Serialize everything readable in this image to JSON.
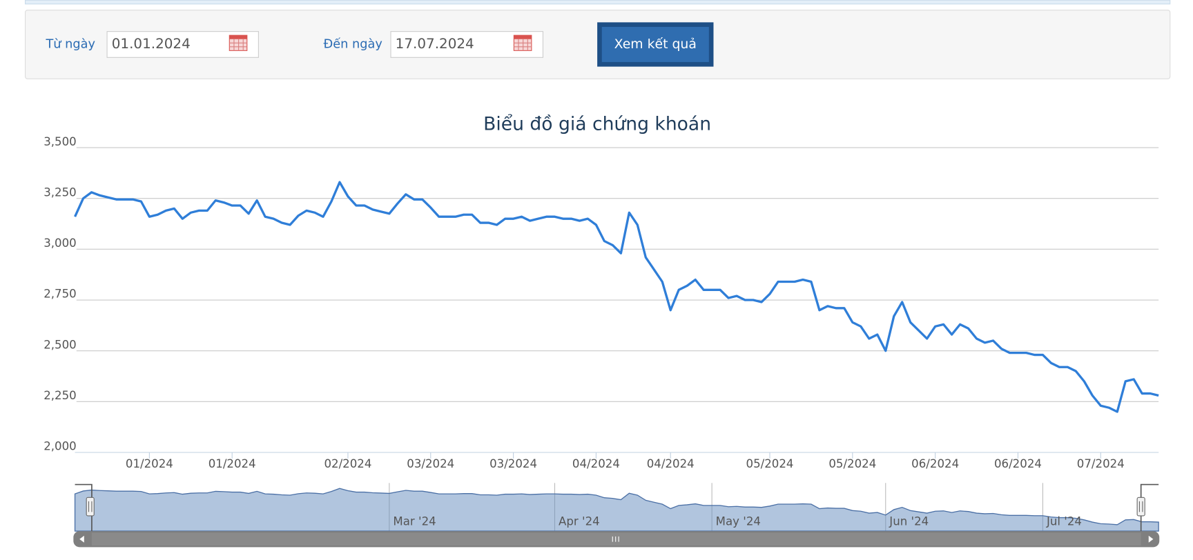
{
  "form": {
    "from_label": "Từ ngày",
    "from_value": "01.01.2024",
    "to_label": "Đến ngày",
    "to_value": "17.07.2024",
    "button": "Xem kết quả"
  },
  "chart_data": {
    "type": "line",
    "title": "Biểu đồ giá chứng khoán",
    "color": "#2f7ed8",
    "grid": true,
    "ylim": [
      2000,
      3500
    ],
    "yticks": [
      {
        "value": 2000,
        "label": "2,000"
      },
      {
        "value": 2250,
        "label": "2,250"
      },
      {
        "value": 2500,
        "label": "2,500"
      },
      {
        "value": 2750,
        "label": "2,750"
      },
      {
        "value": 3000,
        "label": "3,000"
      },
      {
        "value": 3250,
        "label": "3,250"
      },
      {
        "value": 3500,
        "label": "3,500"
      }
    ],
    "xticks": [
      {
        "value": 9,
        "label": "01/2024"
      },
      {
        "value": 19,
        "label": "01/2024"
      },
      {
        "value": 33,
        "label": "02/2024"
      },
      {
        "value": 43,
        "label": "03/2024"
      },
      {
        "value": 53,
        "label": "03/2024"
      },
      {
        "value": 63,
        "label": "04/2024"
      },
      {
        "value": 72,
        "label": "04/2024"
      },
      {
        "value": 84,
        "label": "05/2024"
      },
      {
        "value": 94,
        "label": "05/2024"
      },
      {
        "value": 104,
        "label": "06/2024"
      },
      {
        "value": 114,
        "label": "06/2024"
      },
      {
        "value": 124,
        "label": "07/2024"
      }
    ],
    "navigator_ticks": [
      {
        "value": 38,
        "label": "Mar '24"
      },
      {
        "value": 58,
        "label": "Apr '24"
      },
      {
        "value": 77,
        "label": "May '24"
      },
      {
        "value": 98,
        "label": "Jun '24"
      },
      {
        "value": 117,
        "label": "Jul '24"
      }
    ],
    "values": [
      3160,
      3250,
      3280,
      3265,
      3255,
      3245,
      3245,
      3245,
      3235,
      3160,
      3170,
      3190,
      3200,
      3150,
      3180,
      3190,
      3190,
      3240,
      3230,
      3215,
      3215,
      3175,
      3240,
      3160,
      3150,
      3130,
      3120,
      3165,
      3190,
      3180,
      3160,
      3235,
      3330,
      3260,
      3215,
      3215,
      3195,
      3185,
      3175,
      3225,
      3270,
      3245,
      3245,
      3205,
      3160,
      3160,
      3160,
      3170,
      3170,
      3130,
      3130,
      3120,
      3150,
      3150,
      3160,
      3140,
      3150,
      3160,
      3160,
      3150,
      3150,
      3140,
      3150,
      3120,
      3040,
      3020,
      2980,
      3180,
      3120,
      2960,
      2900,
      2840,
      2700,
      2800,
      2820,
      2850,
      2800,
      2800,
      2800,
      2760,
      2770,
      2750,
      2750,
      2740,
      2780,
      2840,
      2840,
      2840,
      2850,
      2840,
      2700,
      2720,
      2710,
      2710,
      2640,
      2620,
      2560,
      2580,
      2500,
      2670,
      2740,
      2640,
      2600,
      2560,
      2620,
      2630,
      2580,
      2630,
      2610,
      2560,
      2540,
      2550,
      2510,
      2490,
      2490,
      2490,
      2480,
      2480,
      2440,
      2420,
      2420,
      2400,
      2350,
      2280,
      2230,
      2220,
      2200,
      2350,
      2360,
      2290,
      2290,
      2280
    ]
  }
}
